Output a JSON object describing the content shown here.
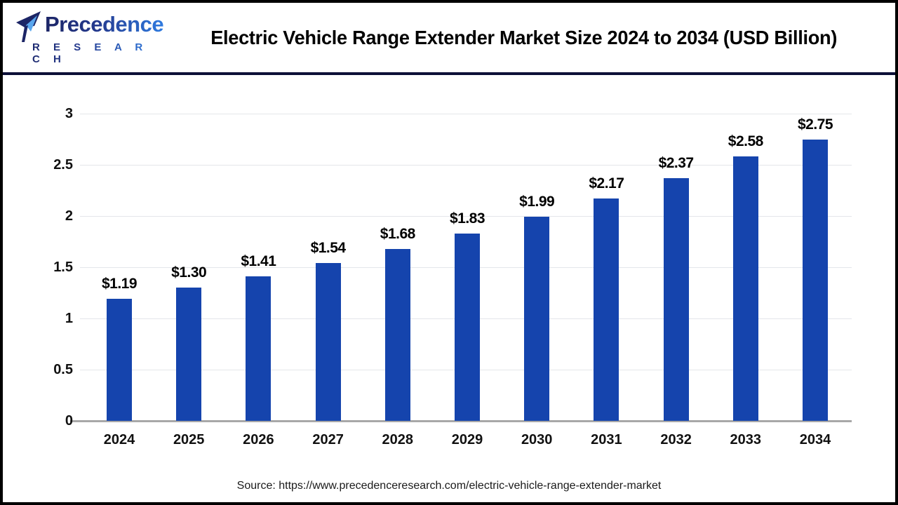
{
  "header": {
    "logo": {
      "name": "Precedence",
      "subname": "R E S E A R C H"
    },
    "title": "Electric Vehicle Range Extender Market Size 2024 to 2034 (USD Billion)"
  },
  "chart_data": {
    "type": "bar",
    "title": "Electric Vehicle Range Extender Market Size 2024 to 2034 (USD Billion)",
    "categories": [
      "2024",
      "2025",
      "2026",
      "2027",
      "2028",
      "2029",
      "2030",
      "2031",
      "2032",
      "2033",
      "2034"
    ],
    "values": [
      1.19,
      1.3,
      1.41,
      1.54,
      1.68,
      1.83,
      1.99,
      2.17,
      2.37,
      2.58,
      2.75
    ],
    "value_labels": [
      "$1.19",
      "$1.30",
      "$1.41",
      "$1.54",
      "$1.68",
      "$1.83",
      "$1.99",
      "$2.17",
      "$2.37",
      "$2.58",
      "$2.75"
    ],
    "unit": "USD Billion",
    "xlabel": "",
    "ylabel": "",
    "ylim": [
      0,
      3
    ],
    "yticks": [
      0,
      0.5,
      1,
      1.5,
      2,
      2.5,
      3
    ],
    "grid": true,
    "legend": "none",
    "bar_color": "#1544ad",
    "gridline_color": "#e4e6ea",
    "axis_color": "#a8a8a8"
  },
  "footer": {
    "source": "Source: https://www.precedenceresearch.com/electric-vehicle-range-extender-market"
  }
}
